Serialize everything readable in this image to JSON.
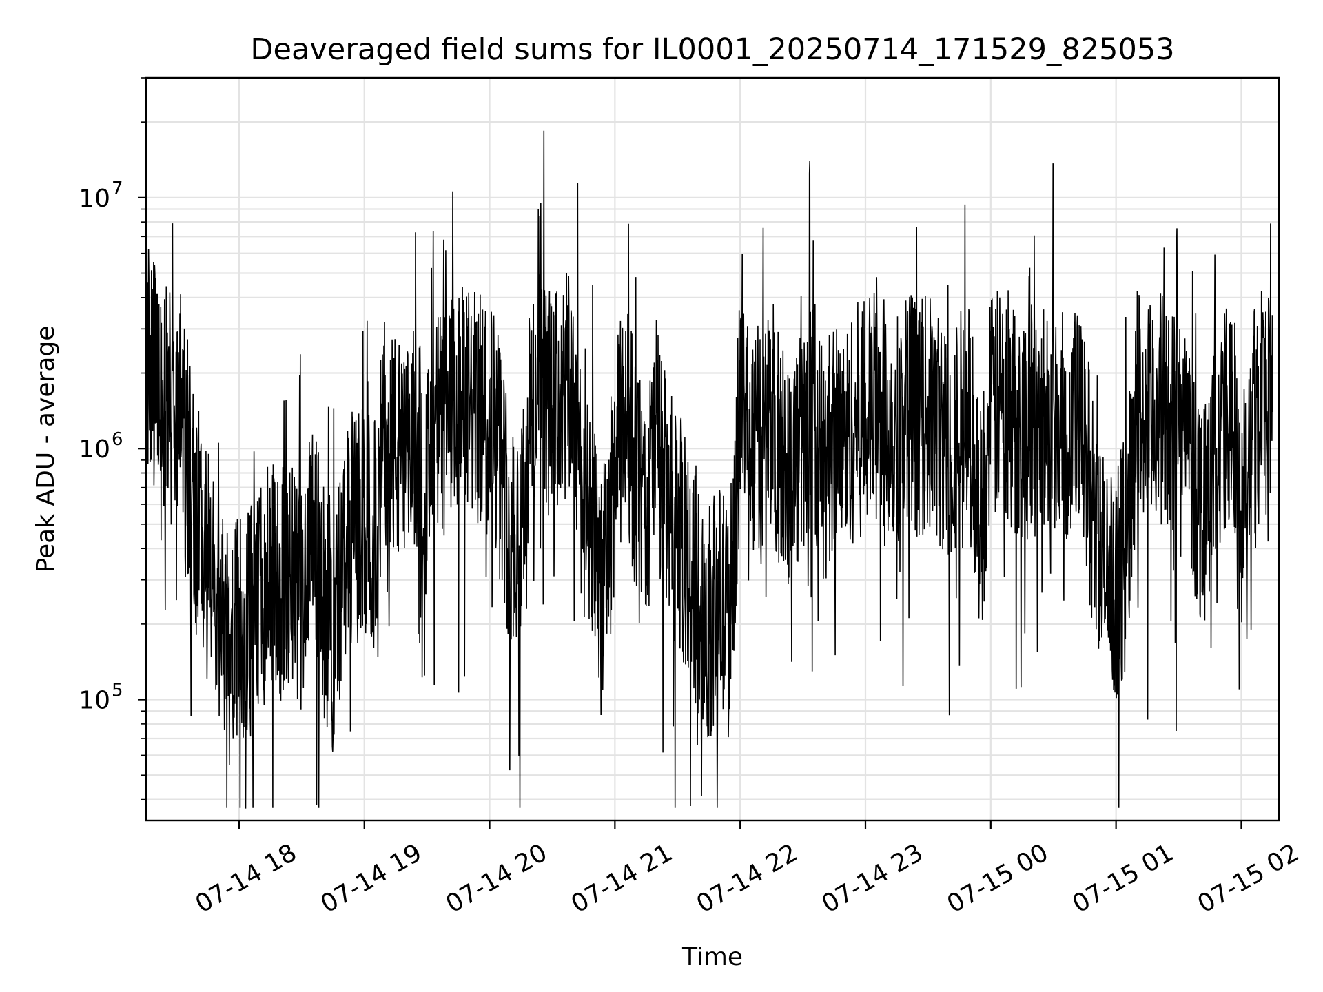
{
  "chart_data": {
    "type": "line",
    "title": "Deaveraged field sums for IL0001_20250714_171529_825053",
    "xlabel": "Time",
    "ylabel": "Peak ADU - average",
    "yscale": "log",
    "ylim": [
      33000,
      30000000
    ],
    "xlim": [
      "2025-07-14T17:15:29",
      "2025-07-15T02:18:00"
    ],
    "x_ticks": [
      {
        "t": "2025-07-14T18:00:00",
        "label": "07-14 18"
      },
      {
        "t": "2025-07-14T19:00:00",
        "label": "07-14 19"
      },
      {
        "t": "2025-07-14T20:00:00",
        "label": "07-14 20"
      },
      {
        "t": "2025-07-14T21:00:00",
        "label": "07-14 21"
      },
      {
        "t": "2025-07-14T22:00:00",
        "label": "07-14 22"
      },
      {
        "t": "2025-07-14T23:00:00",
        "label": "07-14 23"
      },
      {
        "t": "2025-07-15T00:00:00",
        "label": "07-15 00"
      },
      {
        "t": "2025-07-15T01:00:00",
        "label": "07-15 01"
      },
      {
        "t": "2025-07-15T02:00:00",
        "label": "07-15 02"
      }
    ],
    "y_ticks": [
      {
        "v": 100000,
        "base": "10",
        "exp": "5"
      },
      {
        "v": 1000000,
        "base": "10",
        "exp": "6"
      },
      {
        "v": 10000000,
        "base": "10",
        "exp": "7"
      }
    ],
    "grid": true,
    "legend": "none",
    "line_color": "#000000",
    "series": [
      {
        "x": [
          "2025-07-14T17:15:29",
          "2025-07-14T17:20:00",
          "2025-07-14T17:25:00",
          "2025-07-14T17:30:00",
          "2025-07-14T17:35:00",
          "2025-07-14T17:40:00",
          "2025-07-14T17:45:00",
          "2025-07-14T17:50:00",
          "2025-07-14T17:55:00",
          "2025-07-14T18:00:00",
          "2025-07-14T18:05:00",
          "2025-07-14T18:10:00",
          "2025-07-14T18:15:00",
          "2025-07-14T18:20:00",
          "2025-07-14T18:25:00",
          "2025-07-14T18:30:00",
          "2025-07-14T18:35:00",
          "2025-07-14T18:40:00",
          "2025-07-14T18:45:00",
          "2025-07-14T18:50:00",
          "2025-07-14T18:55:00",
          "2025-07-14T19:00:00",
          "2025-07-14T19:05:00",
          "2025-07-14T19:10:00",
          "2025-07-14T19:15:00",
          "2025-07-14T19:20:00",
          "2025-07-14T19:25:00",
          "2025-07-14T19:30:00",
          "2025-07-14T19:35:00",
          "2025-07-14T19:40:00",
          "2025-07-14T19:45:00",
          "2025-07-14T19:50:00",
          "2025-07-14T19:55:00",
          "2025-07-14T20:00:00",
          "2025-07-14T20:05:00",
          "2025-07-14T20:10:00",
          "2025-07-14T20:15:00",
          "2025-07-14T20:20:00",
          "2025-07-14T20:25:00",
          "2025-07-14T20:30:00",
          "2025-07-14T20:35:00",
          "2025-07-14T20:40:00",
          "2025-07-14T20:45:00",
          "2025-07-14T20:50:00",
          "2025-07-14T20:55:00",
          "2025-07-14T21:00:00",
          "2025-07-14T21:05:00",
          "2025-07-14T21:10:00",
          "2025-07-14T21:15:00",
          "2025-07-14T21:20:00",
          "2025-07-14T21:25:00",
          "2025-07-14T21:30:00",
          "2025-07-14T21:35:00",
          "2025-07-14T21:40:00",
          "2025-07-14T21:45:00",
          "2025-07-14T21:50:00",
          "2025-07-14T21:55:00",
          "2025-07-14T22:00:00",
          "2025-07-14T22:05:00",
          "2025-07-14T22:10:00",
          "2025-07-14T22:15:00",
          "2025-07-14T22:20:00",
          "2025-07-14T22:25:00",
          "2025-07-14T22:30:00",
          "2025-07-14T22:35:00",
          "2025-07-14T22:40:00",
          "2025-07-14T22:45:00",
          "2025-07-14T22:50:00",
          "2025-07-14T22:55:00",
          "2025-07-14T23:00:00",
          "2025-07-14T23:05:00",
          "2025-07-14T23:10:00",
          "2025-07-14T23:15:00",
          "2025-07-14T23:20:00",
          "2025-07-14T23:25:00",
          "2025-07-14T23:30:00",
          "2025-07-14T23:35:00",
          "2025-07-14T23:40:00",
          "2025-07-14T23:45:00",
          "2025-07-14T23:50:00",
          "2025-07-14T23:55:00",
          "2025-07-15T00:00:00",
          "2025-07-15T00:05:00",
          "2025-07-15T00:10:00",
          "2025-07-15T00:15:00",
          "2025-07-15T00:20:00",
          "2025-07-15T00:25:00",
          "2025-07-15T00:30:00",
          "2025-07-15T00:35:00",
          "2025-07-15T00:40:00",
          "2025-07-15T00:45:00",
          "2025-07-15T00:50:00",
          "2025-07-15T00:55:00",
          "2025-07-15T01:00:00",
          "2025-07-15T01:05:00",
          "2025-07-15T01:10:00",
          "2025-07-15T01:15:00",
          "2025-07-15T01:20:00",
          "2025-07-15T01:25:00",
          "2025-07-15T01:30:00",
          "2025-07-15T01:35:00",
          "2025-07-15T01:40:00",
          "2025-07-15T01:45:00",
          "2025-07-15T01:50:00",
          "2025-07-15T01:55:00",
          "2025-07-15T02:00:00",
          "2025-07-15T02:05:00",
          "2025-07-15T02:10:00",
          "2025-07-15T02:15:00"
        ],
        "values": [
          2500000,
          1800000,
          1500000,
          1300000,
          1000000,
          500000,
          350000,
          200000,
          160000,
          180000,
          200000,
          250000,
          300000,
          280000,
          300000,
          250000,
          700000,
          250000,
          180000,
          350000,
          500000,
          500000,
          450000,
          1200000,
          1000000,
          800000,
          1200000,
          700000,
          1200000,
          1300000,
          1500000,
          1500000,
          1400000,
          1500000,
          1000000,
          450000,
          500000,
          1500000,
          1800000,
          1400000,
          1600000,
          1800000,
          600000,
          400000,
          300000,
          800000,
          1500000,
          800000,
          500000,
          1300000,
          600000,
          500000,
          350000,
          250000,
          200000,
          250000,
          200000,
          1500000,
          1200000,
          1000000,
          1500000,
          800000,
          900000,
          1000000,
          1500000,
          800000,
          1200000,
          1000000,
          1300000,
          1300000,
          1500000,
          1300000,
          1200000,
          1600000,
          1300000,
          1400000,
          1200000,
          1000000,
          1300000,
          1300000,
          500000,
          1400000,
          1500000,
          1300000,
          1300000,
          1200000,
          1300000,
          1400000,
          1200000,
          1300000,
          1000000,
          500000,
          300000,
          300000,
          400000,
          1600000,
          1200000,
          1500000,
          1300000,
          1400000,
          1000000,
          600000,
          800000,
          1200000,
          1300000,
          500000,
          1600000,
          1700000,
          1400000
        ]
      }
    ]
  }
}
